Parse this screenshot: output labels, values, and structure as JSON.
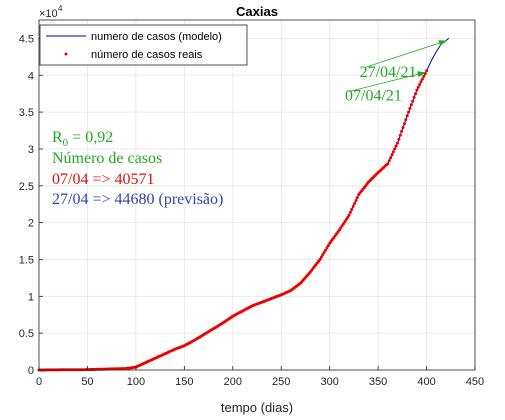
{
  "chart_data": {
    "type": "line",
    "title": "Caxias",
    "xlabel": "tempo (dias)",
    "ylabel": "",
    "xlim": [
      0,
      450
    ],
    "ylim": [
      0,
      4.75
    ],
    "y_exponent_label": "×10",
    "y_exponent_power": "4",
    "x_ticks": [
      "0",
      "50",
      "100",
      "150",
      "200",
      "250",
      "300",
      "350",
      "400",
      "450"
    ],
    "y_ticks": [
      "0",
      "0.5",
      "1",
      "1.5",
      "2",
      "2.5",
      "3",
      "3.5",
      "4",
      "4.5"
    ],
    "grid": true,
    "legend_position": "top-left",
    "series": [
      {
        "name": "numero de casos (modelo)",
        "color": "#0000aa",
        "style": "line",
        "x": [
          0,
          50,
          90,
          100,
          110,
          120,
          130,
          140,
          150,
          160,
          170,
          180,
          190,
          200,
          210,
          220,
          230,
          240,
          250,
          260,
          270,
          280,
          290,
          300,
          310,
          320,
          330,
          340,
          350,
          360,
          370,
          380,
          390,
          400,
          405,
          410,
          415,
          420,
          423
        ],
        "y": [
          0,
          0.005,
          0.02,
          0.04,
          0.1,
          0.16,
          0.22,
          0.28,
          0.33,
          0.4,
          0.48,
          0.56,
          0.64,
          0.73,
          0.8,
          0.87,
          0.92,
          0.97,
          1.02,
          1.08,
          1.18,
          1.33,
          1.5,
          1.72,
          1.9,
          2.1,
          2.38,
          2.55,
          2.68,
          2.8,
          3.08,
          3.45,
          3.8,
          4.06,
          4.2,
          4.32,
          4.42,
          4.47,
          4.5
        ]
      },
      {
        "name": "número de casos reais",
        "color": "#ee0000",
        "style": "points",
        "x": [
          0,
          50,
          90,
          100,
          110,
          120,
          130,
          140,
          150,
          160,
          170,
          180,
          190,
          200,
          210,
          220,
          230,
          240,
          250,
          260,
          270,
          280,
          290,
          300,
          310,
          320,
          330,
          340,
          350,
          360,
          370,
          380,
          390,
          400
        ],
        "y": [
          0,
          0.005,
          0.02,
          0.04,
          0.1,
          0.16,
          0.22,
          0.28,
          0.33,
          0.4,
          0.48,
          0.56,
          0.64,
          0.73,
          0.8,
          0.87,
          0.92,
          0.97,
          1.02,
          1.08,
          1.18,
          1.33,
          1.5,
          1.72,
          1.9,
          2.1,
          2.38,
          2.55,
          2.68,
          2.8,
          3.08,
          3.45,
          3.8,
          4.06
        ]
      }
    ],
    "arrows": [
      {
        "label": "27/04/21",
        "color": "#22aa22",
        "from_x": 335,
        "from_y": 4.1,
        "to_x": 421,
        "to_y": 4.47
      },
      {
        "label": "07/04/21",
        "color": "#22aa22",
        "from_x": 320,
        "from_y": 3.78,
        "to_x": 399,
        "to_y": 4.04
      }
    ],
    "annotations": [
      {
        "text_main": "R",
        "text_sub": "0",
        "text_rest": " = 0,92",
        "color": "#22aa22"
      },
      {
        "text": "Número de casos",
        "color": "#22aa22"
      },
      {
        "text": "07/04 => 40571",
        "color": "#dd1111"
      },
      {
        "text": "27/04 => 44680 (previsão)",
        "color": "#3344aa"
      }
    ]
  }
}
